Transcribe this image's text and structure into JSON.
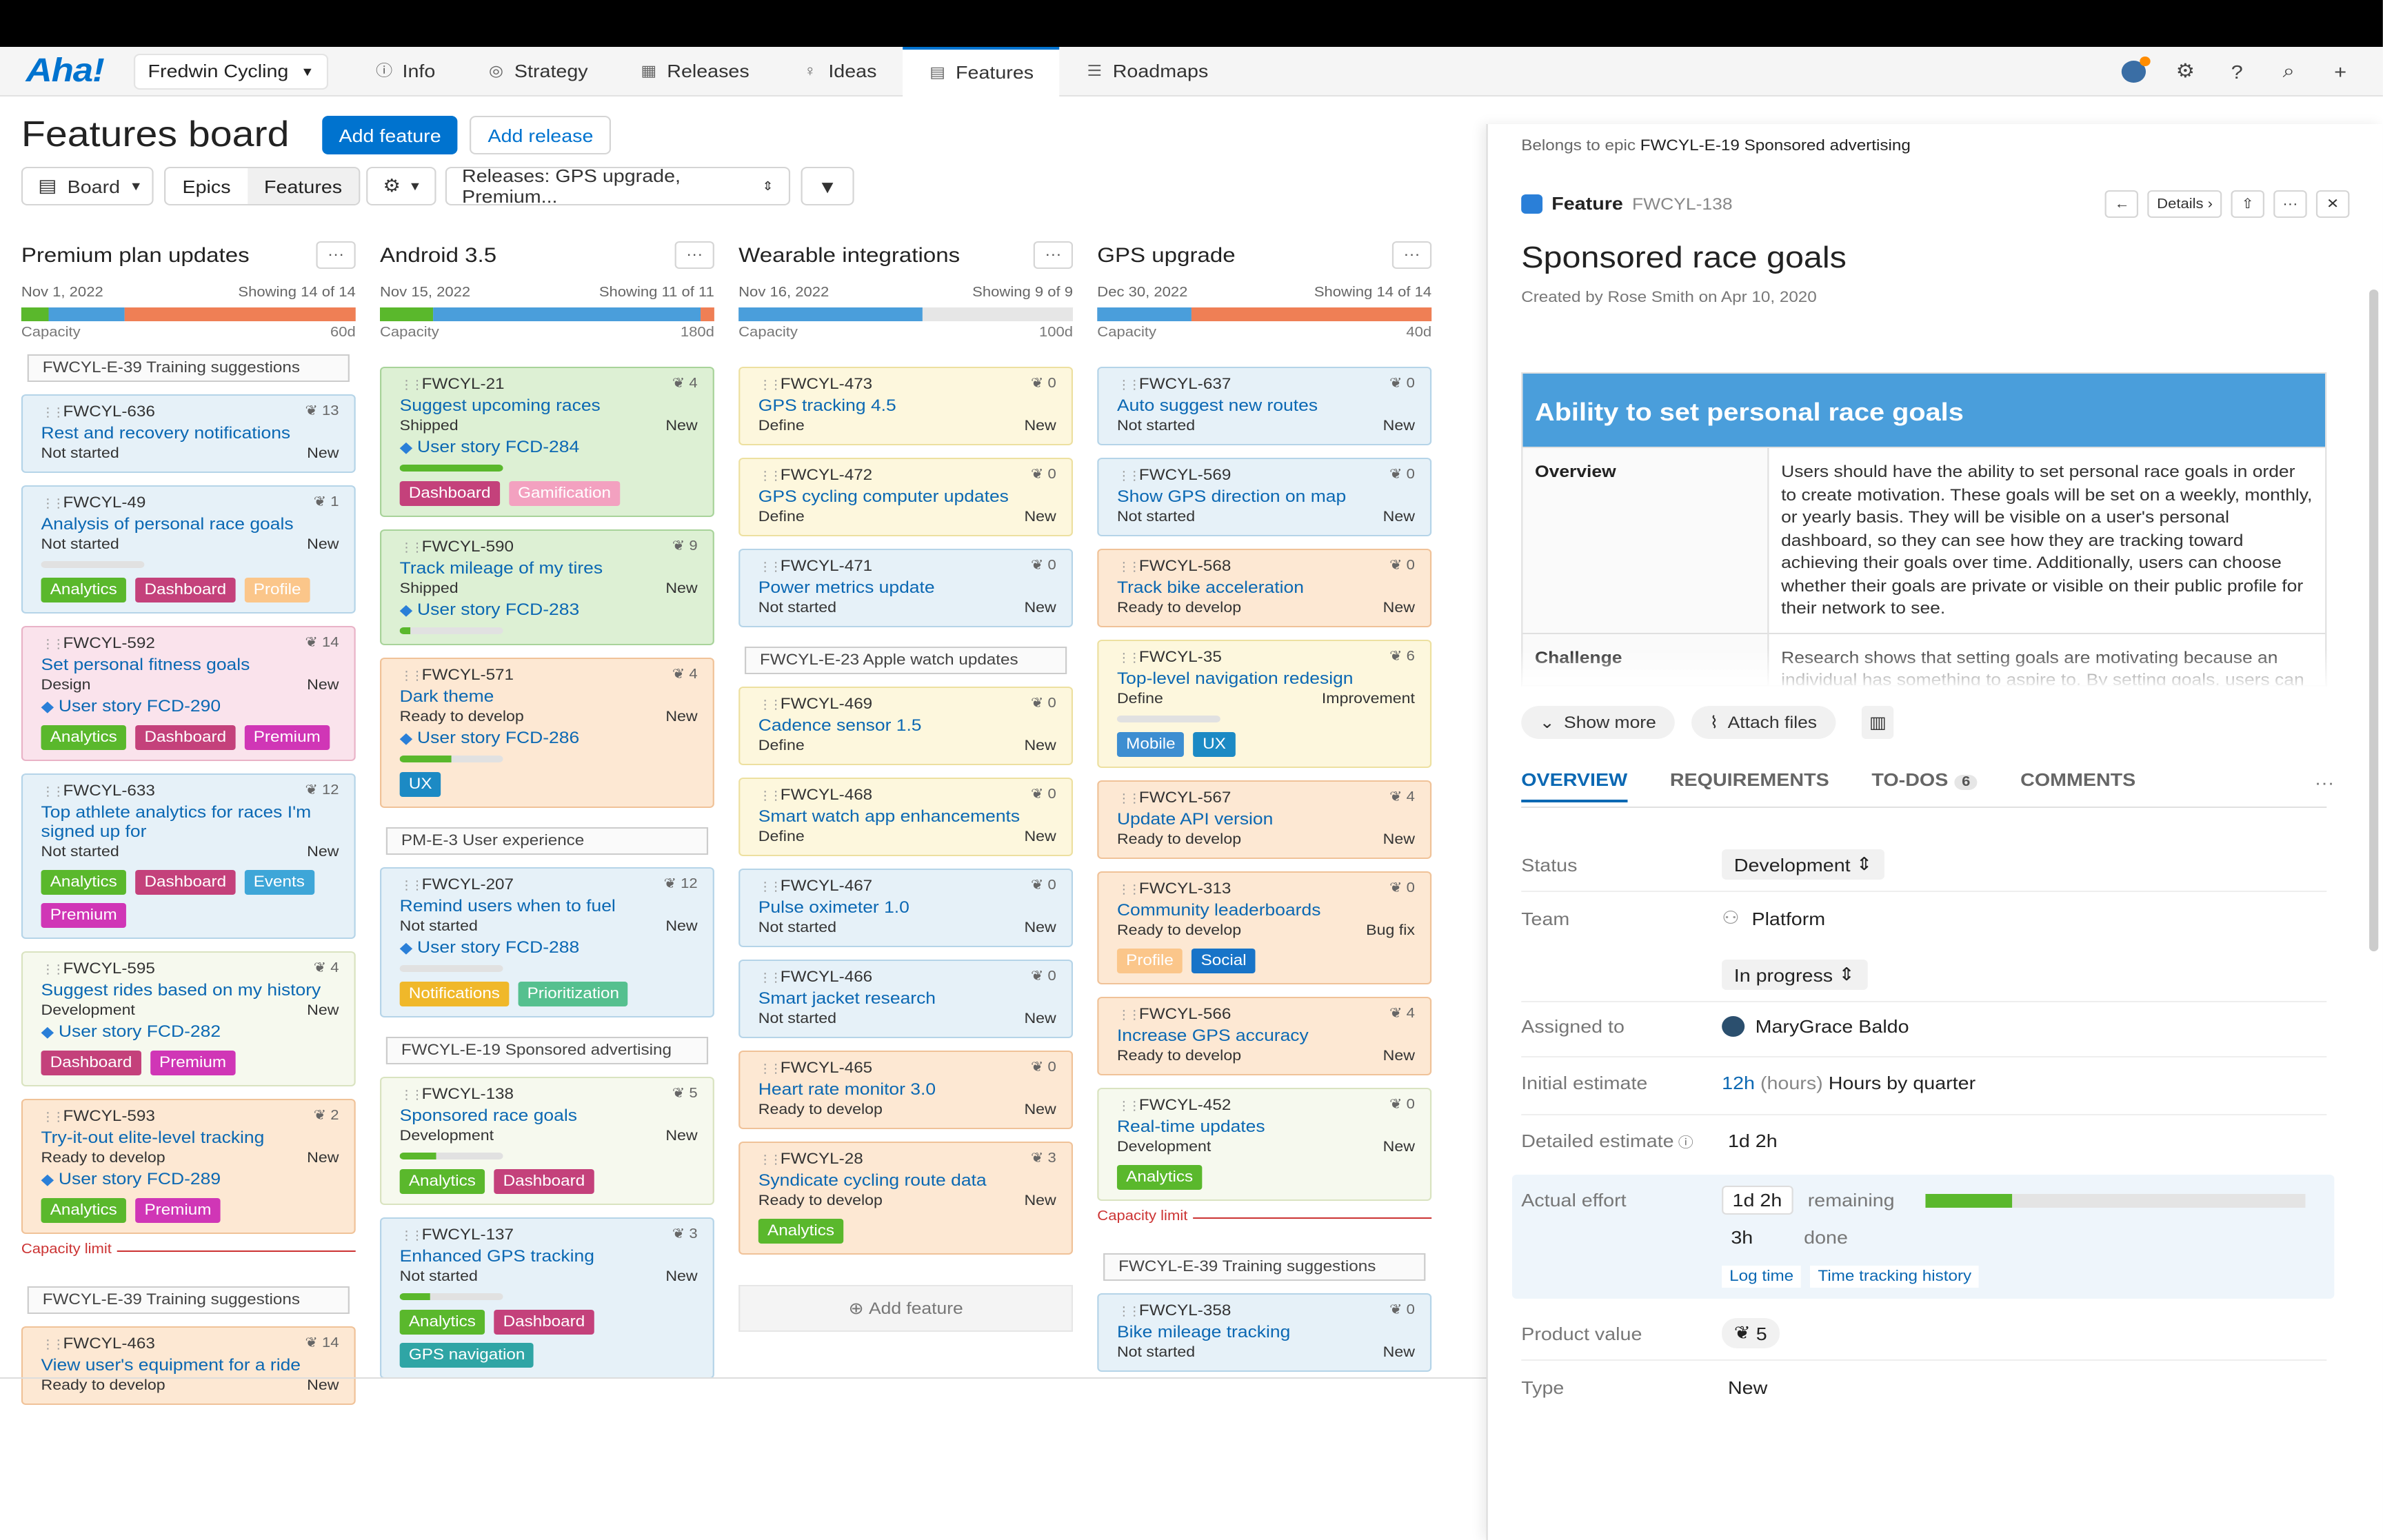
{
  "nav": {
    "logo": "Aha!",
    "workspace": "Fredwin Cycling",
    "items": [
      "Info",
      "Strategy",
      "Releases",
      "Ideas",
      "Features",
      "Roadmaps"
    ],
    "active": "Features"
  },
  "page": {
    "title": "Features board",
    "add_feature": "Add feature",
    "add_release": "Add release",
    "board": "Board",
    "epics": "Epics",
    "features": "Features",
    "releases_filter": "Releases: GPS upgrade, Premium..."
  },
  "columns": [
    {
      "name": "Premium plan updates",
      "date": "Nov 1, 2022",
      "showing": "Showing 14 of 14",
      "capacity": "Capacity",
      "cap_value": "60d",
      "cards": [
        {
          "epic": "FWCYL-E-39 Training suggestions"
        },
        {
          "id": "FWCYL-636",
          "score": "13",
          "title": "Rest and recovery notifications",
          "status": "Not started",
          "type": "New",
          "color": "blue"
        },
        {
          "id": "FWCYL-49",
          "score": "1",
          "title": "Analysis of personal race goals",
          "status": "Not started",
          "type": "New",
          "color": "blue",
          "progress": 0,
          "tags": [
            "Analytics",
            "Dashboard",
            "Profile"
          ]
        },
        {
          "id": "FWCYL-592",
          "score": "14",
          "title": "Set personal fitness goals",
          "status": "Design",
          "type": "New",
          "color": "pink",
          "story": "User story FCD-290",
          "tags": [
            "Analytics",
            "Dashboard",
            "Premium"
          ]
        },
        {
          "id": "FWCYL-633",
          "score": "12",
          "title": "Top athlete analytics for races I'm signed up for",
          "status": "Not started",
          "type": "New",
          "color": "blue",
          "tags": [
            "Analytics",
            "Dashboard",
            "Events",
            "Premium"
          ]
        },
        {
          "id": "FWCYL-595",
          "score": "4",
          "title": "Suggest rides based on my history",
          "status": "Development",
          "type": "New",
          "color": "pale",
          "story": "User story FCD-282",
          "tags": [
            "Dashboard",
            "Premium"
          ]
        },
        {
          "id": "FWCYL-593",
          "score": "2",
          "title": "Try-it-out elite-level tracking",
          "status": "Ready to develop",
          "type": "New",
          "color": "orange",
          "story": "User story FCD-289",
          "tags": [
            "Analytics",
            "Premium"
          ]
        },
        {
          "caplimit": "Capacity limit"
        },
        {
          "epic": "FWCYL-E-39 Training suggestions"
        },
        {
          "id": "FWCYL-463",
          "score": "14",
          "title": "View user's equipment for a ride",
          "status": "Ready to develop",
          "type": "New",
          "color": "orange"
        }
      ]
    },
    {
      "name": "Android 3.5",
      "date": "Nov 15, 2022",
      "showing": "Showing 11 of 11",
      "capacity": "Capacity",
      "cap_value": "180d",
      "cards": [
        {
          "id": "FWCYL-21",
          "score": "4",
          "title": "Suggest upcoming races",
          "status": "Shipped",
          "type": "New",
          "color": "green",
          "story": "User story FCD-284",
          "progress": 100,
          "tags": [
            "Dashboard",
            "Gamification"
          ]
        },
        {
          "id": "FWCYL-590",
          "score": "9",
          "title": "Track mileage of my tires",
          "status": "Shipped",
          "type": "New",
          "color": "green",
          "story": "User story FCD-283",
          "progress": 10
        },
        {
          "id": "FWCYL-571",
          "score": "4",
          "title": "Dark theme",
          "status": "Ready to develop",
          "type": "New",
          "color": "orange",
          "story": "User story FCD-286",
          "progress": 50,
          "tags": [
            "UX"
          ]
        },
        {
          "epic": "PM-E-3 User experience"
        },
        {
          "id": "FWCYL-207",
          "score": "12",
          "title": "Remind users when to fuel",
          "status": "Not started",
          "type": "New",
          "color": "blue",
          "story": "User story FCD-288",
          "progress": 0,
          "tags": [
            "Notifications",
            "Prioritization"
          ]
        },
        {
          "epic": "FWCYL-E-19 Sponsored advertising"
        },
        {
          "id": "FWCYL-138",
          "score": "5",
          "title": "Sponsored race goals",
          "status": "Development",
          "type": "New",
          "color": "pale",
          "progress": 35,
          "tags": [
            "Analytics",
            "Dashboard"
          ]
        },
        {
          "id": "FWCYL-137",
          "score": "3",
          "title": "Enhanced GPS tracking",
          "status": "Not started",
          "type": "New",
          "color": "blue",
          "progress": 30,
          "tags": [
            "Analytics",
            "Dashboard",
            "GPS navigation"
          ]
        }
      ]
    },
    {
      "name": "Wearable integrations",
      "date": "Nov 16, 2022",
      "showing": "Showing 9 of 9",
      "capacity": "Capacity",
      "cap_value": "100d",
      "cards": [
        {
          "id": "FWCYL-473",
          "score": "0",
          "title": "GPS tracking 4.5",
          "status": "Define",
          "type": "New",
          "color": "yellow"
        },
        {
          "id": "FWCYL-472",
          "score": "0",
          "title": "GPS cycling computer updates",
          "status": "Define",
          "type": "New",
          "color": "yellow"
        },
        {
          "id": "FWCYL-471",
          "score": "0",
          "title": "Power metrics update",
          "status": "Not started",
          "type": "New",
          "color": "blue"
        },
        {
          "epic": "FWCYL-E-23 Apple watch updates"
        },
        {
          "id": "FWCYL-469",
          "score": "0",
          "title": "Cadence sensor 1.5",
          "status": "Define",
          "type": "New",
          "color": "yellow"
        },
        {
          "id": "FWCYL-468",
          "score": "0",
          "title": "Smart watch app enhancements",
          "status": "Define",
          "type": "New",
          "color": "yellow"
        },
        {
          "id": "FWCYL-467",
          "score": "0",
          "title": "Pulse oximeter 1.0",
          "status": "Not started",
          "type": "New",
          "color": "blue"
        },
        {
          "id": "FWCYL-466",
          "score": "0",
          "title": "Smart jacket research",
          "status": "Not started",
          "type": "New",
          "color": "blue"
        },
        {
          "id": "FWCYL-465",
          "score": "0",
          "title": "Heart rate monitor 3.0",
          "status": "Ready to develop",
          "type": "New",
          "color": "orange"
        },
        {
          "id": "FWCYL-28",
          "score": "3",
          "title": "Syndicate cycling route data",
          "status": "Ready to develop",
          "type": "New",
          "color": "orange",
          "tags": [
            "Analytics"
          ]
        },
        {
          "add": "Add feature"
        }
      ]
    },
    {
      "name": "GPS upgrade",
      "date": "Dec 30, 2022",
      "showing": "Showing 14 of 14",
      "capacity": "Capacity",
      "cap_value": "40d",
      "cards": [
        {
          "id": "FWCYL-637",
          "score": "0",
          "title": "Auto suggest new routes",
          "status": "Not started",
          "type": "New",
          "color": "blue"
        },
        {
          "id": "FWCYL-569",
          "score": "0",
          "title": "Show GPS direction on map",
          "status": "Not started",
          "type": "New",
          "color": "blue"
        },
        {
          "id": "FWCYL-568",
          "score": "0",
          "title": "Track bike acceleration",
          "status": "Ready to develop",
          "type": "New",
          "color": "orange"
        },
        {
          "id": "FWCYL-35",
          "score": "6",
          "title": "Top-level navigation redesign",
          "status": "Define",
          "type": "Improvement",
          "color": "yellow",
          "progress": 0,
          "tags": [
            "Mobile",
            "UX"
          ]
        },
        {
          "id": "FWCYL-567",
          "score": "4",
          "title": "Update API version",
          "status": "Ready to develop",
          "type": "New",
          "color": "orange"
        },
        {
          "id": "FWCYL-313",
          "score": "0",
          "title": "Community leaderboards",
          "status": "Ready to develop",
          "type": "Bug fix",
          "color": "orange",
          "tags": [
            "Profile",
            "Social"
          ]
        },
        {
          "id": "FWCYL-566",
          "score": "4",
          "title": "Increase GPS accuracy",
          "status": "Ready to develop",
          "type": "New",
          "color": "orange"
        },
        {
          "id": "FWCYL-452",
          "score": "0",
          "title": "Real-time updates",
          "status": "Development",
          "type": "New",
          "color": "pale",
          "tags": [
            "Analytics"
          ]
        },
        {
          "caplimit": "Capacity limit"
        },
        {
          "epic": "FWCYL-E-39 Training suggestions"
        },
        {
          "id": "FWCYL-358",
          "score": "0",
          "title": "Bike mileage tracking",
          "status": "Not started",
          "type": "New",
          "color": "blue"
        }
      ]
    }
  ],
  "drawer": {
    "belongs_prefix": "Belongs to epic",
    "belongs_epic": "FWCYL-E-19 Sponsored advertising",
    "kind": "Feature",
    "id": "FWCYL-138",
    "details": "Details",
    "title": "Sponsored race goals",
    "created": "Created by Rose Smith on Apr 10, 2020",
    "doc_title": "Ability to set personal race goals",
    "overview_label": "Overview",
    "overview_text": "Users should have the ability to set personal race goals in order to create motivation. These goals will be set on a weekly, monthly, or yearly basis. They will be visible on a user's personal dashboard, so they can see how they are tracking toward achieving their goals over time. Additionally, users can choose whether their goals are private or visible on their public profile for their network to see.",
    "challenge_label": "Challenge",
    "challenge_text": "Research shows that setting goals are motivating because an individual has something to aspire to. By setting goals, users can also track their progress overtime in a more meaningful",
    "show_more": "Show more",
    "attach": "Attach files",
    "tabs": [
      "OVERVIEW",
      "REQUIREMENTS",
      "TO-DOS",
      "COMMENTS"
    ],
    "todos_count": "6",
    "fields": {
      "status_label": "Status",
      "status": "Development",
      "team_label": "Team",
      "team": "Platform",
      "progress": "In progress",
      "assigned_label": "Assigned to",
      "assigned": "MaryGrace Baldo",
      "initial_label": "Initial estimate",
      "initial_value": "12h",
      "initial_unit": "(hours)",
      "initial_mode": "Hours by quarter",
      "detailed_label": "Detailed estimate",
      "detailed": "1d 2h",
      "actual_label": "Actual effort",
      "remaining": "1d 2h",
      "remaining_label": "remaining",
      "done": "3h",
      "done_label": "done",
      "log_time": "Log time",
      "history": "Time tracking history",
      "effort_fraction": 0.23,
      "value_label": "Product value",
      "value": "5",
      "type_label": "Type",
      "type": "New"
    }
  }
}
